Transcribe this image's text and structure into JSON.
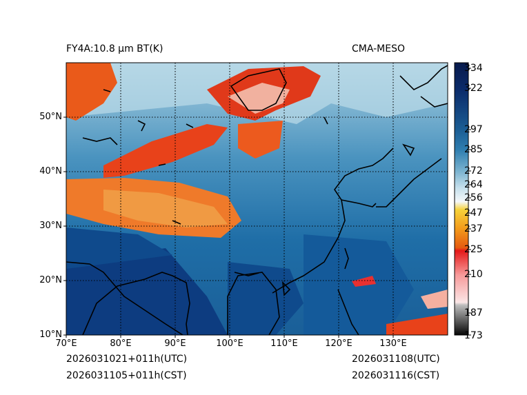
{
  "title_left": "FY4A:10.8 µm BT(K)",
  "title_right": "CMA-MESO",
  "lat_labels": [
    "50°N",
    "40°N",
    "30°N",
    "20°N",
    "10°N"
  ],
  "lon_labels": [
    "70°E",
    "80°E",
    "90°E",
    "100°E",
    "110°E",
    "120°E",
    "130°E"
  ],
  "colorbar": {
    "labels": [
      "334",
      "322",
      "297",
      "285",
      "272",
      "264",
      "256",
      "247",
      "237",
      "225",
      "210",
      "187",
      "173"
    ],
    "min": 173,
    "max": 334
  },
  "time": {
    "utc_left": "2026031021+011h(UTC)",
    "cst_left": "2026031105+011h(CST)",
    "utc_right": "2026031108(UTC)",
    "cst_right": "2026031116(CST)"
  }
}
